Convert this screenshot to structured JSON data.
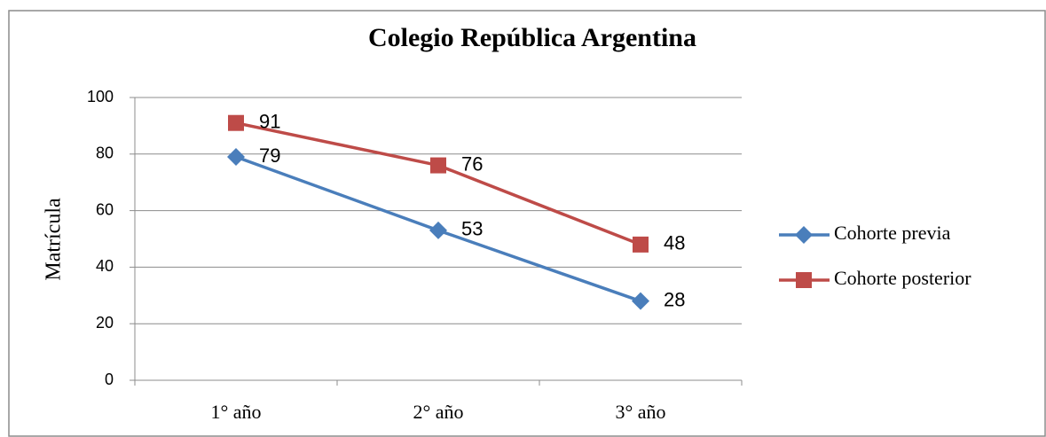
{
  "chart_data": {
    "type": "line",
    "title": "Colegio República Argentina",
    "y_label": "Matrícula",
    "categories": [
      "1° año",
      "2° año",
      "3° año"
    ],
    "series": [
      {
        "name": "Cohorte previa",
        "color": "#4a7ebb",
        "marker": "diamond",
        "values": [
          79,
          53,
          28
        ]
      },
      {
        "name": "Cohorte posterior",
        "color": "#be4b48",
        "marker": "square",
        "values": [
          91,
          76,
          48
        ]
      }
    ],
    "ylim": [
      0,
      100
    ],
    "yticks": [
      0,
      20,
      40,
      60,
      80,
      100
    ],
    "grid": true,
    "legend": "right"
  }
}
